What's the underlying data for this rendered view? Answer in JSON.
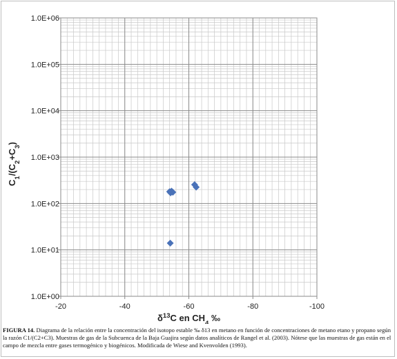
{
  "chart_data": {
    "type": "scatter",
    "title": "",
    "x_axis": {
      "label_parts": [
        {
          "text": "δ",
          "style": "normal"
        },
        {
          "text": "13",
          "style": "sup"
        },
        {
          "text": "C en CH",
          "style": "normal"
        },
        {
          "text": "4",
          "style": "sub"
        },
        {
          "text": " ‰",
          "style": "normal"
        }
      ],
      "range": [
        -20,
        -100
      ],
      "ticks": [
        -20,
        -40,
        -60,
        -80,
        -100
      ],
      "tick_labels": [
        "-20",
        "-40",
        "-60",
        "-80",
        "-100"
      ],
      "reversed": true,
      "minor_divisions": 10
    },
    "y_axis": {
      "label_parts": [
        {
          "text": "C",
          "style": "normal"
        },
        {
          "text": "1",
          "style": "sub"
        },
        {
          "text": "/(C",
          "style": "normal"
        },
        {
          "text": "2",
          "style": "sub"
        },
        {
          "text": "+C",
          "style": "normal"
        },
        {
          "text": "3",
          "style": "sub"
        },
        {
          "text": ")",
          "style": "normal"
        }
      ],
      "scale": "log",
      "range": [
        1,
        1000000
      ],
      "ticks": [
        1,
        10,
        100,
        1000,
        10000,
        100000,
        1000000
      ],
      "tick_labels": [
        "1.0E+00",
        "1.0E+01",
        "1.0E+02",
        "1.0E+03",
        "1.0E+04",
        "1.0E+05",
        "1.0E+06"
      ]
    },
    "grid": true,
    "legend": "none",
    "marker_color": "#4a72b8",
    "grid_major_color": "#8a8a8a",
    "grid_minor_color": "#c8c8c8",
    "points": [
      {
        "x": -54.0,
        "y": 180
      },
      {
        "x": -54.6,
        "y": 185
      },
      {
        "x": -55.0,
        "y": 175
      },
      {
        "x": -54.3,
        "y": 170
      },
      {
        "x": -61.8,
        "y": 255
      },
      {
        "x": -62.3,
        "y": 225
      },
      {
        "x": -54.2,
        "y": 14
      }
    ]
  },
  "caption": {
    "label": "FIGURA 14.",
    "text": "Diagrama de la relación entre la concentración del isotopo estable ‰ δ13 en metano en función de concentraciones de metano etano y propano según la razón C1/(C2+C3). Muestras de gas de la Subcuenca de la Baja Guajira según datos analíticos de Rangel et al. (2003). Nótese que las muestras de gas están en el campo de mezcla entre gases termogénico y biogénicos. Modificada de Wiese and Kvenvolden (1993)."
  }
}
